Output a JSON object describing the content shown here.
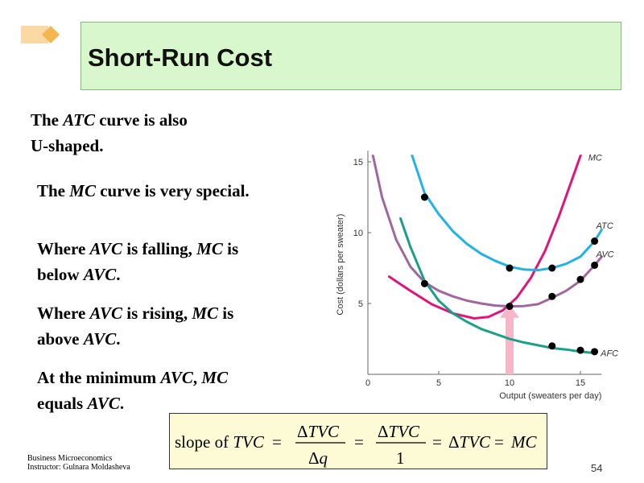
{
  "slide": {
    "title": "Short-Run Cost",
    "page_number": "54",
    "footer": {
      "line1": "Business Microeconomics",
      "line2": "Instructor: Gulnara Moldasheva"
    }
  },
  "text": {
    "p1": {
      "a": "The ",
      "b": "ATC",
      "c": " curve is also",
      "d": "U-shaped."
    },
    "p2": {
      "a": "The ",
      "b": "MC",
      "c": " curve is very special."
    },
    "p3": {
      "a": "Where ",
      "b": "AVC",
      "c": " is falling, ",
      "d": "MC",
      "e": " is",
      "f": "below ",
      "g": "AVC",
      "h": "."
    },
    "p4": {
      "a": "Where ",
      "b": "AVC",
      "c": " is rising, ",
      "d": "MC",
      "e": " is",
      "f": "above ",
      "g": "AVC",
      "h": "."
    },
    "p5": {
      "a": "At the minimum ",
      "b": "AVC",
      "c": ", ",
      "d": "MC",
      "e": "equals ",
      "f": "AVC",
      "g": "."
    }
  },
  "formula": {
    "slope": "slope of ",
    "tvc": "TVC",
    "eq": "=",
    "delta": "Δ",
    "q": "q",
    "one": "1",
    "mc": "MC"
  },
  "chart_data": {
    "type": "line",
    "xlabel": "Output (sweaters per day)",
    "ylabel": "Cost (dollars per sweater)",
    "xlim": [
      0,
      16.5
    ],
    "ylim": [
      0,
      15.5
    ],
    "xticks": [
      5,
      10,
      15
    ],
    "yticks": [
      5,
      10,
      15
    ],
    "series": [
      {
        "name": "MC",
        "color": "#e0157b",
        "x": [
          1.5,
          3,
          4.5,
          6,
          7.5,
          8.5,
          9.5,
          10.5,
          11.5,
          12.5,
          13.5,
          14.5,
          15.1
        ],
        "y": [
          6.9,
          5.9,
          4.95,
          4.3,
          3.95,
          4.05,
          4.5,
          5.4,
          6.8,
          8.7,
          11.2,
          14,
          15.7
        ]
      },
      {
        "name": "ATC",
        "color": "#1fb3e6",
        "x": [
          3.1,
          4,
          5,
          6,
          7,
          8,
          9,
          10,
          11,
          12,
          13,
          14,
          15,
          16,
          16.5
        ],
        "y": [
          15.5,
          12.8,
          11.3,
          10.1,
          9.2,
          8.5,
          8,
          7.6,
          7.4,
          7.35,
          7.5,
          7.8,
          8.3,
          9.4,
          10.2
        ]
      },
      {
        "name": "AVC",
        "color": "#a0669e",
        "x": [
          0.3,
          1,
          2,
          3,
          4,
          5,
          6,
          7,
          8,
          9,
          10,
          11,
          12,
          13,
          14,
          15,
          16,
          16.5
        ],
        "y": [
          15.7,
          12.5,
          9.5,
          7.6,
          6.5,
          5.9,
          5.5,
          5.2,
          5,
          4.85,
          4.8,
          4.82,
          4.95,
          5.4,
          5.9,
          6.6,
          7.7,
          8.3
        ]
      },
      {
        "name": "AFC",
        "color": "#1aa088",
        "x": [
          2.3,
          3,
          4,
          5,
          6,
          7,
          8,
          9,
          10,
          11,
          12,
          13,
          14,
          15,
          16
        ],
        "y": [
          11,
          9,
          6.6,
          5.2,
          4.3,
          3.7,
          3.2,
          2.85,
          2.5,
          2.25,
          2.05,
          1.85,
          1.75,
          1.6,
          1.5
        ]
      }
    ],
    "points": {
      "ATC": [
        [
          4,
          12.5
        ],
        [
          10,
          7.5
        ],
        [
          13,
          7.5
        ],
        [
          16,
          9.4
        ]
      ],
      "AVC": [
        [
          4,
          6.4
        ],
        [
          10,
          4.8
        ],
        [
          13,
          5.5
        ],
        [
          15,
          6.7
        ],
        [
          16,
          7.7
        ]
      ],
      "AFC": [
        [
          13,
          2
        ],
        [
          15,
          1.7
        ],
        [
          16,
          1.6
        ]
      ]
    },
    "arrow": {
      "x": 10,
      "color": "#f7b5c8"
    }
  }
}
